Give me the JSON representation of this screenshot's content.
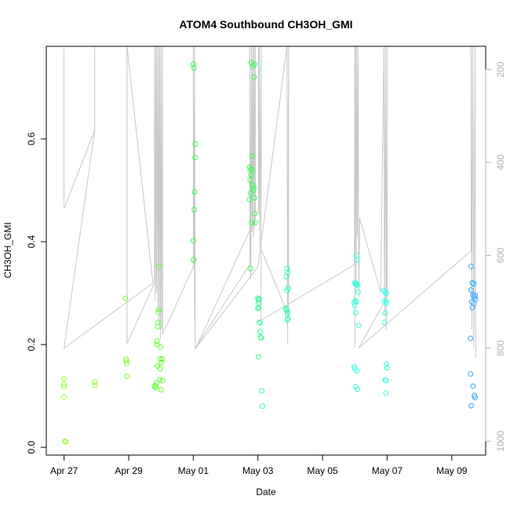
{
  "chart_data": {
    "type": "scatter",
    "title": "ATOM4 Southbound CH3OH_GMI",
    "xlabel": "Date",
    "ylabel": "CH3OH_GMI",
    "x_tick_labels": [
      "Apr 27",
      "Apr 29",
      "May 01",
      "May 03",
      "May 05",
      "May 07",
      "May 09"
    ],
    "x_tick_days": [
      0,
      2,
      4,
      6,
      8,
      10,
      12
    ],
    "x_range_days": [
      -0.55,
      13.05
    ],
    "y_left_ticks": [
      "0.0",
      "0.2",
      "0.4",
      "0.6"
    ],
    "y_left_tick_values": [
      0.0,
      0.2,
      0.4,
      0.6
    ],
    "y_left_range": [
      -0.015,
      0.78
    ],
    "y_right_ticks": [
      "200",
      "400",
      "600",
      "800",
      "1000"
    ],
    "y_right_tick_values": [
      200,
      400,
      600,
      800,
      1000
    ],
    "y_right_range": [
      150,
      1030
    ],
    "y_right_inverted": true,
    "grid": false,
    "colors": {
      "pressure_line": "#c8c8c8",
      "points_early": "#7fff00",
      "points_mid": "#00ff7f",
      "points_late": "#00bfff"
    },
    "points": [
      {
        "d": 0.0,
        "y": 0.133,
        "c": "#99ff33"
      },
      {
        "d": 0.0,
        "y": 0.118,
        "c": "#99ff33"
      },
      {
        "d": 0.0,
        "y": 0.122,
        "c": "#99ff33"
      },
      {
        "d": 0.0,
        "y": 0.098,
        "c": "#99ff33"
      },
      {
        "d": 0.02,
        "y": 0.012,
        "c": "#99ff33"
      },
      {
        "d": 0.05,
        "y": 0.011,
        "c": "#99ff33"
      },
      {
        "d": 0.95,
        "y": 0.127,
        "c": "#99ff33"
      },
      {
        "d": 0.96,
        "y": 0.121,
        "c": "#99ff33"
      },
      {
        "d": 1.9,
        "y": 0.29,
        "c": "#80ff33"
      },
      {
        "d": 1.92,
        "y": 0.172,
        "c": "#80ff33"
      },
      {
        "d": 1.93,
        "y": 0.168,
        "c": "#80ff33"
      },
      {
        "d": 1.94,
        "y": 0.163,
        "c": "#80ff33"
      },
      {
        "d": 1.95,
        "y": 0.138,
        "c": "#80ff33"
      },
      {
        "d": 2.8,
        "y": 0.118,
        "c": "#66ff33"
      },
      {
        "d": 2.82,
        "y": 0.12,
        "c": "#66ff33"
      },
      {
        "d": 2.84,
        "y": 0.116,
        "c": "#66ff33"
      },
      {
        "d": 2.86,
        "y": 0.125,
        "c": "#66ff33"
      },
      {
        "d": 2.87,
        "y": 0.2,
        "c": "#66ff33"
      },
      {
        "d": 2.88,
        "y": 0.207,
        "c": "#66ff33"
      },
      {
        "d": 2.89,
        "y": 0.158,
        "c": "#66ff33"
      },
      {
        "d": 2.9,
        "y": 0.235,
        "c": "#66ff33"
      },
      {
        "d": 2.91,
        "y": 0.243,
        "c": "#66ff33"
      },
      {
        "d": 2.92,
        "y": 0.263,
        "c": "#66ff33"
      },
      {
        "d": 2.93,
        "y": 0.268,
        "c": "#66ff33"
      },
      {
        "d": 2.94,
        "y": 0.352,
        "c": "#66ff33"
      },
      {
        "d": 2.96,
        "y": 0.132,
        "c": "#66ff33"
      },
      {
        "d": 2.97,
        "y": 0.153,
        "c": "#66ff33"
      },
      {
        "d": 2.98,
        "y": 0.172,
        "c": "#66ff33"
      },
      {
        "d": 2.99,
        "y": 0.195,
        "c": "#66ff33"
      },
      {
        "d": 3.0,
        "y": 0.112,
        "c": "#66ff33"
      },
      {
        "d": 3.02,
        "y": 0.165,
        "c": "#66ff33"
      },
      {
        "d": 3.04,
        "y": 0.172,
        "c": "#66ff33"
      },
      {
        "d": 3.05,
        "y": 0.13,
        "c": "#66ff33"
      },
      {
        "d": 4.0,
        "y": 0.745,
        "c": "#33ff44"
      },
      {
        "d": 4.02,
        "y": 0.738,
        "c": "#33ff44"
      },
      {
        "d": 4.0,
        "y": 0.402,
        "c": "#33ff44"
      },
      {
        "d": 4.01,
        "y": 0.365,
        "c": "#33ff44"
      },
      {
        "d": 4.03,
        "y": 0.462,
        "c": "#33ff44"
      },
      {
        "d": 4.04,
        "y": 0.497,
        "c": "#33ff44"
      },
      {
        "d": 4.06,
        "y": 0.564,
        "c": "#33ff44"
      },
      {
        "d": 4.07,
        "y": 0.59,
        "c": "#33ff44"
      },
      {
        "d": 5.8,
        "y": 0.748,
        "c": "#33ff55"
      },
      {
        "d": 5.85,
        "y": 0.742,
        "c": "#33ff55"
      },
      {
        "d": 5.9,
        "y": 0.745,
        "c": "#33ff55"
      },
      {
        "d": 5.88,
        "y": 0.72,
        "c": "#33ff55"
      },
      {
        "d": 5.75,
        "y": 0.545,
        "c": "#33ff55"
      },
      {
        "d": 5.77,
        "y": 0.54,
        "c": "#33ff55"
      },
      {
        "d": 5.79,
        "y": 0.53,
        "c": "#33ff55"
      },
      {
        "d": 5.82,
        "y": 0.54,
        "c": "#33ff55"
      },
      {
        "d": 5.83,
        "y": 0.567,
        "c": "#33ff55"
      },
      {
        "d": 5.76,
        "y": 0.52,
        "c": "#33ff55"
      },
      {
        "d": 5.84,
        "y": 0.51,
        "c": "#33ff55"
      },
      {
        "d": 5.86,
        "y": 0.5,
        "c": "#33ff55"
      },
      {
        "d": 5.87,
        "y": 0.505,
        "c": "#33ff55"
      },
      {
        "d": 5.78,
        "y": 0.494,
        "c": "#33ff55"
      },
      {
        "d": 5.89,
        "y": 0.485,
        "c": "#33ff55"
      },
      {
        "d": 5.74,
        "y": 0.482,
        "c": "#33ff55"
      },
      {
        "d": 5.9,
        "y": 0.455,
        "c": "#33ff55"
      },
      {
        "d": 5.81,
        "y": 0.437,
        "c": "#33ff55"
      },
      {
        "d": 5.92,
        "y": 0.437,
        "c": "#33ff55"
      },
      {
        "d": 5.77,
        "y": 0.348,
        "c": "#33ff55"
      },
      {
        "d": 6.0,
        "y": 0.29,
        "c": "#33ff99"
      },
      {
        "d": 6.01,
        "y": 0.287,
        "c": "#33ff99"
      },
      {
        "d": 6.02,
        "y": 0.28,
        "c": "#33ff99"
      },
      {
        "d": 6.03,
        "y": 0.272,
        "c": "#33ff99"
      },
      {
        "d": 6.0,
        "y": 0.27,
        "c": "#33ff99"
      },
      {
        "d": 6.04,
        "y": 0.288,
        "c": "#33ff99"
      },
      {
        "d": 6.05,
        "y": 0.243,
        "c": "#33ff99"
      },
      {
        "d": 6.06,
        "y": 0.242,
        "c": "#33ff99"
      },
      {
        "d": 6.07,
        "y": 0.225,
        "c": "#33ff99"
      },
      {
        "d": 6.08,
        "y": 0.215,
        "c": "#33ff99"
      },
      {
        "d": 6.1,
        "y": 0.213,
        "c": "#33ff99"
      },
      {
        "d": 6.02,
        "y": 0.176,
        "c": "#33ff99"
      },
      {
        "d": 6.12,
        "y": 0.11,
        "c": "#33ff99"
      },
      {
        "d": 6.14,
        "y": 0.08,
        "c": "#33ff99"
      },
      {
        "d": 6.9,
        "y": 0.348,
        "c": "#33ffaa"
      },
      {
        "d": 6.92,
        "y": 0.34,
        "c": "#33ffaa"
      },
      {
        "d": 6.88,
        "y": 0.332,
        "c": "#33ffaa"
      },
      {
        "d": 6.94,
        "y": 0.31,
        "c": "#33ffaa"
      },
      {
        "d": 6.9,
        "y": 0.305,
        "c": "#33ffaa"
      },
      {
        "d": 6.86,
        "y": 0.27,
        "c": "#33ffaa"
      },
      {
        "d": 6.88,
        "y": 0.268,
        "c": "#33ffaa"
      },
      {
        "d": 6.9,
        "y": 0.265,
        "c": "#33ffaa"
      },
      {
        "d": 6.92,
        "y": 0.26,
        "c": "#33ffaa"
      },
      {
        "d": 6.91,
        "y": 0.248,
        "c": "#33ffaa"
      },
      {
        "d": 6.93,
        "y": 0.25,
        "c": "#33ffaa"
      },
      {
        "d": 9.05,
        "y": 0.373,
        "c": "#33ffdd"
      },
      {
        "d": 9.06,
        "y": 0.365,
        "c": "#33ffdd"
      },
      {
        "d": 9.0,
        "y": 0.32,
        "c": "#33ffdd"
      },
      {
        "d": 9.02,
        "y": 0.318,
        "c": "#33ffdd"
      },
      {
        "d": 9.04,
        "y": 0.317,
        "c": "#33ffdd"
      },
      {
        "d": 9.06,
        "y": 0.318,
        "c": "#33ffdd"
      },
      {
        "d": 9.08,
        "y": 0.315,
        "c": "#33ffdd"
      },
      {
        "d": 9.1,
        "y": 0.302,
        "c": "#33ffdd"
      },
      {
        "d": 8.98,
        "y": 0.282,
        "c": "#33ffdd"
      },
      {
        "d": 9.0,
        "y": 0.276,
        "c": "#33ffdd"
      },
      {
        "d": 9.02,
        "y": 0.285,
        "c": "#33ffdd"
      },
      {
        "d": 9.04,
        "y": 0.283,
        "c": "#33ffdd"
      },
      {
        "d": 9.03,
        "y": 0.262,
        "c": "#33ffdd"
      },
      {
        "d": 9.12,
        "y": 0.237,
        "c": "#33ffdd"
      },
      {
        "d": 8.98,
        "y": 0.157,
        "c": "#33ffdd"
      },
      {
        "d": 9.0,
        "y": 0.153,
        "c": "#33ffdd"
      },
      {
        "d": 9.06,
        "y": 0.149,
        "c": "#33ffdd"
      },
      {
        "d": 9.02,
        "y": 0.118,
        "c": "#33ffdd"
      },
      {
        "d": 9.08,
        "y": 0.113,
        "c": "#33ffdd"
      },
      {
        "d": 9.9,
        "y": 0.305,
        "c": "#33ffee"
      },
      {
        "d": 9.94,
        "y": 0.302,
        "c": "#33ffee"
      },
      {
        "d": 9.98,
        "y": 0.3,
        "c": "#33ffee"
      },
      {
        "d": 9.92,
        "y": 0.285,
        "c": "#33ffee"
      },
      {
        "d": 9.96,
        "y": 0.283,
        "c": "#33ffee"
      },
      {
        "d": 9.98,
        "y": 0.28,
        "c": "#33ffee"
      },
      {
        "d": 9.94,
        "y": 0.261,
        "c": "#33ffee"
      },
      {
        "d": 9.92,
        "y": 0.243,
        "c": "#33ffee"
      },
      {
        "d": 9.98,
        "y": 0.162,
        "c": "#33ffee"
      },
      {
        "d": 10.0,
        "y": 0.155,
        "c": "#33ffee"
      },
      {
        "d": 9.94,
        "y": 0.131,
        "c": "#33ffee"
      },
      {
        "d": 9.97,
        "y": 0.13,
        "c": "#33ffee"
      },
      {
        "d": 9.96,
        "y": 0.106,
        "c": "#33ffee"
      },
      {
        "d": 12.6,
        "y": 0.352,
        "c": "#33aaff"
      },
      {
        "d": 12.64,
        "y": 0.32,
        "c": "#33aaff"
      },
      {
        "d": 12.68,
        "y": 0.318,
        "c": "#33aaff"
      },
      {
        "d": 12.6,
        "y": 0.306,
        "c": "#33aaff"
      },
      {
        "d": 12.66,
        "y": 0.296,
        "c": "#33aaff"
      },
      {
        "d": 12.72,
        "y": 0.296,
        "c": "#33aaff"
      },
      {
        "d": 12.7,
        "y": 0.292,
        "c": "#33aaff"
      },
      {
        "d": 12.74,
        "y": 0.288,
        "c": "#33aaff"
      },
      {
        "d": 12.62,
        "y": 0.283,
        "c": "#33aaff"
      },
      {
        "d": 12.68,
        "y": 0.28,
        "c": "#33aaff"
      },
      {
        "d": 12.64,
        "y": 0.272,
        "c": "#33aaff"
      },
      {
        "d": 12.58,
        "y": 0.212,
        "c": "#33aaff"
      },
      {
        "d": 12.58,
        "y": 0.143,
        "c": "#33aaff"
      },
      {
        "d": 12.66,
        "y": 0.119,
        "c": "#33aaff"
      },
      {
        "d": 12.7,
        "y": 0.101,
        "c": "#33aaff"
      },
      {
        "d": 12.72,
        "y": 0.097,
        "c": "#33aaff"
      },
      {
        "d": 12.6,
        "y": 0.081,
        "c": "#33aaff"
      }
    ],
    "pressure_path": [
      [
        0.0,
        150
      ],
      [
        0.0,
        490
      ],
      [
        0.0,
        150
      ],
      [
        0.0,
        500
      ],
      [
        0.95,
        330
      ],
      [
        0.95,
        150
      ],
      [
        0.95,
        330
      ],
      [
        0.0,
        800
      ],
      [
        2.75,
        660
      ],
      [
        1.95,
        150
      ],
      [
        1.95,
        790
      ],
      [
        2.8,
        660
      ],
      [
        2.8,
        150
      ],
      [
        2.82,
        700
      ],
      [
        2.84,
        150
      ],
      [
        2.86,
        680
      ],
      [
        2.88,
        150
      ],
      [
        2.9,
        720
      ],
      [
        2.92,
        150
      ],
      [
        2.94,
        750
      ],
      [
        2.96,
        150
      ],
      [
        2.98,
        780
      ],
      [
        3.0,
        150
      ],
      [
        3.02,
        760
      ],
      [
        3.05,
        150
      ],
      [
        3.05,
        770
      ],
      [
        4.0,
        625
      ],
      [
        4.0,
        150
      ],
      [
        4.04,
        740
      ],
      [
        4.04,
        150
      ],
      [
        4.06,
        800
      ],
      [
        5.75,
        620
      ],
      [
        5.75,
        150
      ],
      [
        5.78,
        650
      ],
      [
        5.8,
        150
      ],
      [
        5.82,
        550
      ],
      [
        5.84,
        150
      ],
      [
        5.86,
        560
      ],
      [
        5.88,
        150
      ],
      [
        5.9,
        540
      ],
      [
        5.92,
        150
      ],
      [
        5.92,
        520
      ],
      [
        4.08,
        800
      ],
      [
        6.0,
        625
      ],
      [
        6.9,
        150
      ],
      [
        6.92,
        790
      ],
      [
        6.95,
        150
      ],
      [
        6.95,
        730
      ],
      [
        6.06,
        580
      ],
      [
        6.02,
        150
      ],
      [
        6.02,
        510
      ],
      [
        6.04,
        150
      ],
      [
        6.06,
        550
      ],
      [
        6.1,
        150
      ],
      [
        6.1,
        740
      ],
      [
        8.99,
        620
      ],
      [
        9.0,
        150
      ],
      [
        9.0,
        800
      ],
      [
        9.02,
        150
      ],
      [
        9.04,
        680
      ],
      [
        9.06,
        150
      ],
      [
        9.08,
        560
      ],
      [
        9.1,
        150
      ],
      [
        9.12,
        690
      ],
      [
        9.15,
        520
      ],
      [
        9.8,
        680
      ],
      [
        9.9,
        150
      ],
      [
        9.92,
        730
      ],
      [
        9.95,
        150
      ],
      [
        9.97,
        760
      ],
      [
        10.0,
        150
      ],
      [
        10.0,
        690
      ],
      [
        9.12,
        800
      ],
      [
        12.6,
        590
      ],
      [
        12.6,
        150
      ],
      [
        12.62,
        760
      ],
      [
        12.65,
        150
      ],
      [
        12.68,
        800
      ],
      [
        12.72,
        150
      ],
      [
        12.74,
        820
      ]
    ]
  }
}
